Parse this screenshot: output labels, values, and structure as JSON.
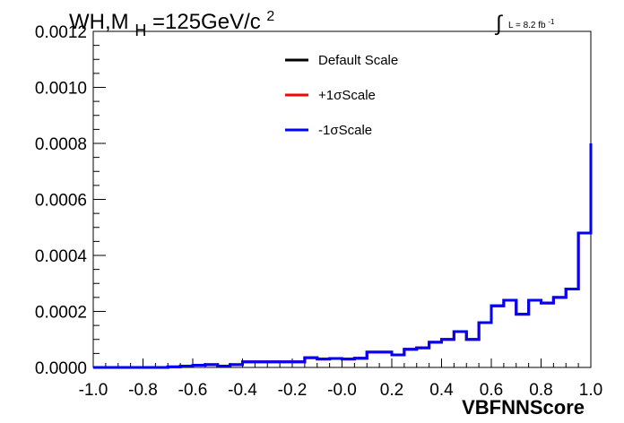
{
  "chart_data": {
    "type": "line",
    "title_main": "WH,M",
    "title_sub": "H",
    "title_rest": "=125GeV/c",
    "title_sup": "2",
    "lumi_prefix": "L = 8.2 fb",
    "lumi_sup": "-1",
    "integral_symbol": "∫",
    "xlabel": "VBFNNScore",
    "ylabel": "",
    "xlim": [
      -1.0,
      1.0
    ],
    "ylim": [
      0.0,
      0.0012
    ],
    "x_tick_labels": [
      "-1.0",
      "-0.8",
      "-0.6",
      "-0.4",
      "-0.2",
      "-0.0",
      "0.2",
      "0.4",
      "0.6",
      "0.8",
      "1.0"
    ],
    "y_tick_labels": [
      "0.0000",
      "0.0002",
      "0.0004",
      "0.0006",
      "0.0008",
      "0.0010",
      "0.0012"
    ],
    "legend_position": "top-center",
    "bin_edges": [
      -1.0,
      -0.95,
      -0.9,
      -0.85,
      -0.8,
      -0.75,
      -0.7,
      -0.65,
      -0.6,
      -0.55,
      -0.5,
      -0.45,
      -0.4,
      -0.35,
      -0.3,
      -0.25,
      -0.2,
      -0.15,
      -0.1,
      -0.05,
      0.0,
      0.05,
      0.1,
      0.15,
      0.2,
      0.25,
      0.3,
      0.35,
      0.4,
      0.45,
      0.5,
      0.55,
      0.6,
      0.65,
      0.7,
      0.75,
      0.8,
      0.85,
      0.9,
      0.95,
      1.0
    ],
    "series": [
      {
        "name": "Default Scale",
        "color": "#000000",
        "values": [
          0.0,
          0.0,
          0.0,
          0.0,
          0.0,
          0.0,
          2e-06,
          5e-06,
          8e-06,
          1e-05,
          5e-06,
          1e-05,
          2e-05,
          2e-05,
          2e-05,
          2e-05,
          2e-05,
          3.5e-05,
          3e-05,
          3.2e-05,
          3e-05,
          3.3e-05,
          5.5e-05,
          5.5e-05,
          4.5e-05,
          6.5e-05,
          7e-05,
          9e-05,
          0.0001,
          0.000128,
          0.0001,
          0.00016,
          0.00022,
          0.00024,
          0.00019,
          0.00024,
          0.00023,
          0.00025,
          0.00028,
          0.00048,
          0.0008
        ]
      },
      {
        "name": "+1σScale",
        "color": "#ff0000",
        "values": [
          0.0,
          0.0,
          0.0,
          0.0,
          0.0,
          0.0,
          2e-06,
          5e-06,
          8e-06,
          1e-05,
          5e-06,
          1e-05,
          2e-05,
          2e-05,
          2e-05,
          2e-05,
          2e-05,
          3.5e-05,
          3e-05,
          3.2e-05,
          3e-05,
          3.3e-05,
          5.5e-05,
          5.5e-05,
          4.5e-05,
          6.5e-05,
          7e-05,
          9e-05,
          0.0001,
          0.000128,
          0.0001,
          0.00016,
          0.00022,
          0.00024,
          0.00019,
          0.00024,
          0.00023,
          0.00025,
          0.00028,
          0.00048,
          0.0008
        ]
      },
      {
        "name": "-1σScale",
        "color": "#0000ff",
        "values": [
          0.0,
          0.0,
          0.0,
          0.0,
          0.0,
          0.0,
          2e-06,
          5e-06,
          8e-06,
          1e-05,
          5e-06,
          1e-05,
          2e-05,
          2e-05,
          2e-05,
          2e-05,
          2e-05,
          3.5e-05,
          3e-05,
          3.2e-05,
          3e-05,
          3.3e-05,
          5.5e-05,
          5.5e-05,
          4.5e-05,
          6.5e-05,
          7e-05,
          9e-05,
          0.0001,
          0.000128,
          0.0001,
          0.00016,
          0.00022,
          0.00024,
          0.00019,
          0.00024,
          0.00023,
          0.00025,
          0.00028,
          0.00048,
          0.0008
        ]
      }
    ]
  }
}
